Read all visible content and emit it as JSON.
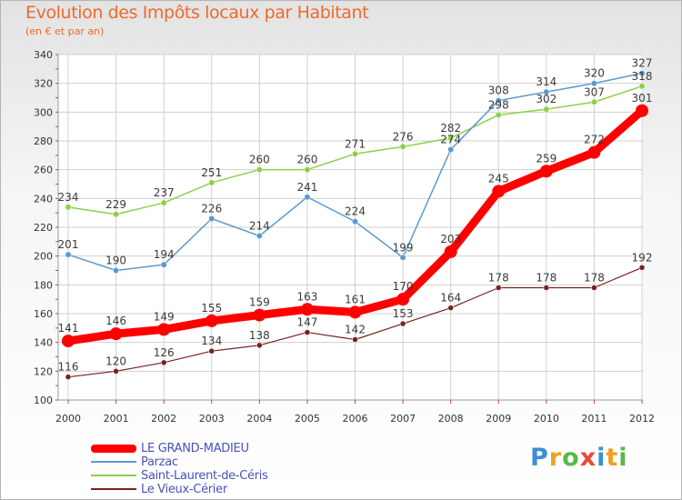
{
  "title": "Evolution des Impôts locaux par Habitant",
  "subtitle": "(en € et par an)",
  "logo": {
    "text": "Proxiti",
    "letters": [
      "P",
      "r",
      "o",
      "x",
      "i",
      "t",
      "i"
    ]
  },
  "colors": {
    "title": "#ee6a2a",
    "grid": "#d0d0d0",
    "axis": "#9a9a9a",
    "legend_text": "#4a52b8"
  },
  "chart_data": {
    "type": "line",
    "x": [
      "2000",
      "2001",
      "2002",
      "2003",
      "2004",
      "2005",
      "2006",
      "2007",
      "2008",
      "2009",
      "2010",
      "2011",
      "2012"
    ],
    "ylim": [
      100,
      340
    ],
    "yticks": [
      "100",
      "120",
      "140",
      "160",
      "180",
      "200",
      "220",
      "240",
      "260",
      "280",
      "300",
      "320",
      "340"
    ],
    "grid": true,
    "legend_position": "bottom-left",
    "series": [
      {
        "name": "LE GRAND-MADIEU",
        "color": "#ff0000",
        "width": 9,
        "marker": 7,
        "values": [
          141,
          146,
          149,
          155,
          159,
          163,
          161,
          170,
          203,
          245,
          259,
          272,
          301
        ]
      },
      {
        "name": "Parzac",
        "color": "#5a9ad0",
        "width": 1.5,
        "marker": 3.2,
        "values": [
          201,
          190,
          194,
          226,
          214,
          241,
          224,
          199,
          274,
          308,
          314,
          320,
          327
        ]
      },
      {
        "name": "Saint-Laurent-de-Céris",
        "color": "#8ed04a",
        "width": 1.5,
        "marker": 3.2,
        "values": [
          234,
          229,
          237,
          251,
          260,
          260,
          271,
          276,
          282,
          298,
          302,
          307,
          318
        ]
      },
      {
        "name": "Le Vieux-Cérier",
        "color": "#7a2020",
        "width": 1.2,
        "marker": 3,
        "values": [
          116,
          120,
          126,
          134,
          138,
          147,
          142,
          153,
          164,
          178,
          178,
          178,
          192
        ]
      }
    ]
  }
}
